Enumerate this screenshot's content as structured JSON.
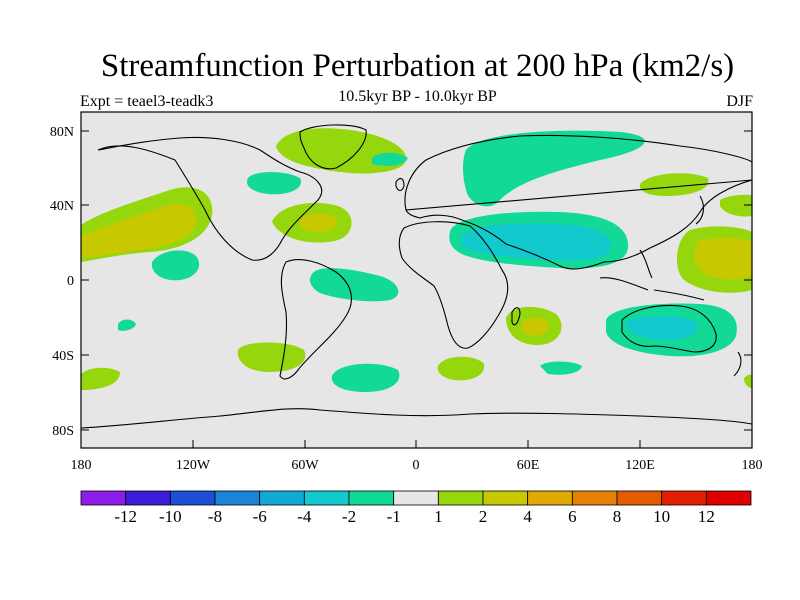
{
  "title": "Streamfunction Perturbation at 200 hPa (km2/s)",
  "left_label": "Expt = teael3-teadk3",
  "center_label": "10.5kyr BP - 10.0kyr BP",
  "right_label": "DJF",
  "lat_ticks": [
    "80N",
    "40N",
    "0",
    "40S",
    "80S"
  ],
  "lon_ticks": [
    "180",
    "120W",
    "60W",
    "0",
    "60E",
    "120E",
    "180"
  ],
  "colorbar": {
    "labels": [
      "-12",
      "-10",
      "-8",
      "-6",
      "-4",
      "-2",
      "-1",
      "1",
      "2",
      "4",
      "6",
      "8",
      "10",
      "12"
    ],
    "colors": [
      "#8b1de6",
      "#3c1bd9",
      "#1e4fd4",
      "#1a84d6",
      "#12aad4",
      "#12c9cd",
      "#12d998",
      "#e6e6e6",
      "#96d60c",
      "#c8c800",
      "#e0aa00",
      "#e68000",
      "#e65a00",
      "#e02000",
      "#e00000"
    ]
  },
  "colors": {
    "ocean_background": "#e6e6e6",
    "positive_light": "#96d60c",
    "positive_mid": "#c8c800",
    "positive_strong": "#e0aa00",
    "negative_light": "#12d998",
    "negative_mid": "#12c9cd",
    "coast": "#000000"
  }
}
